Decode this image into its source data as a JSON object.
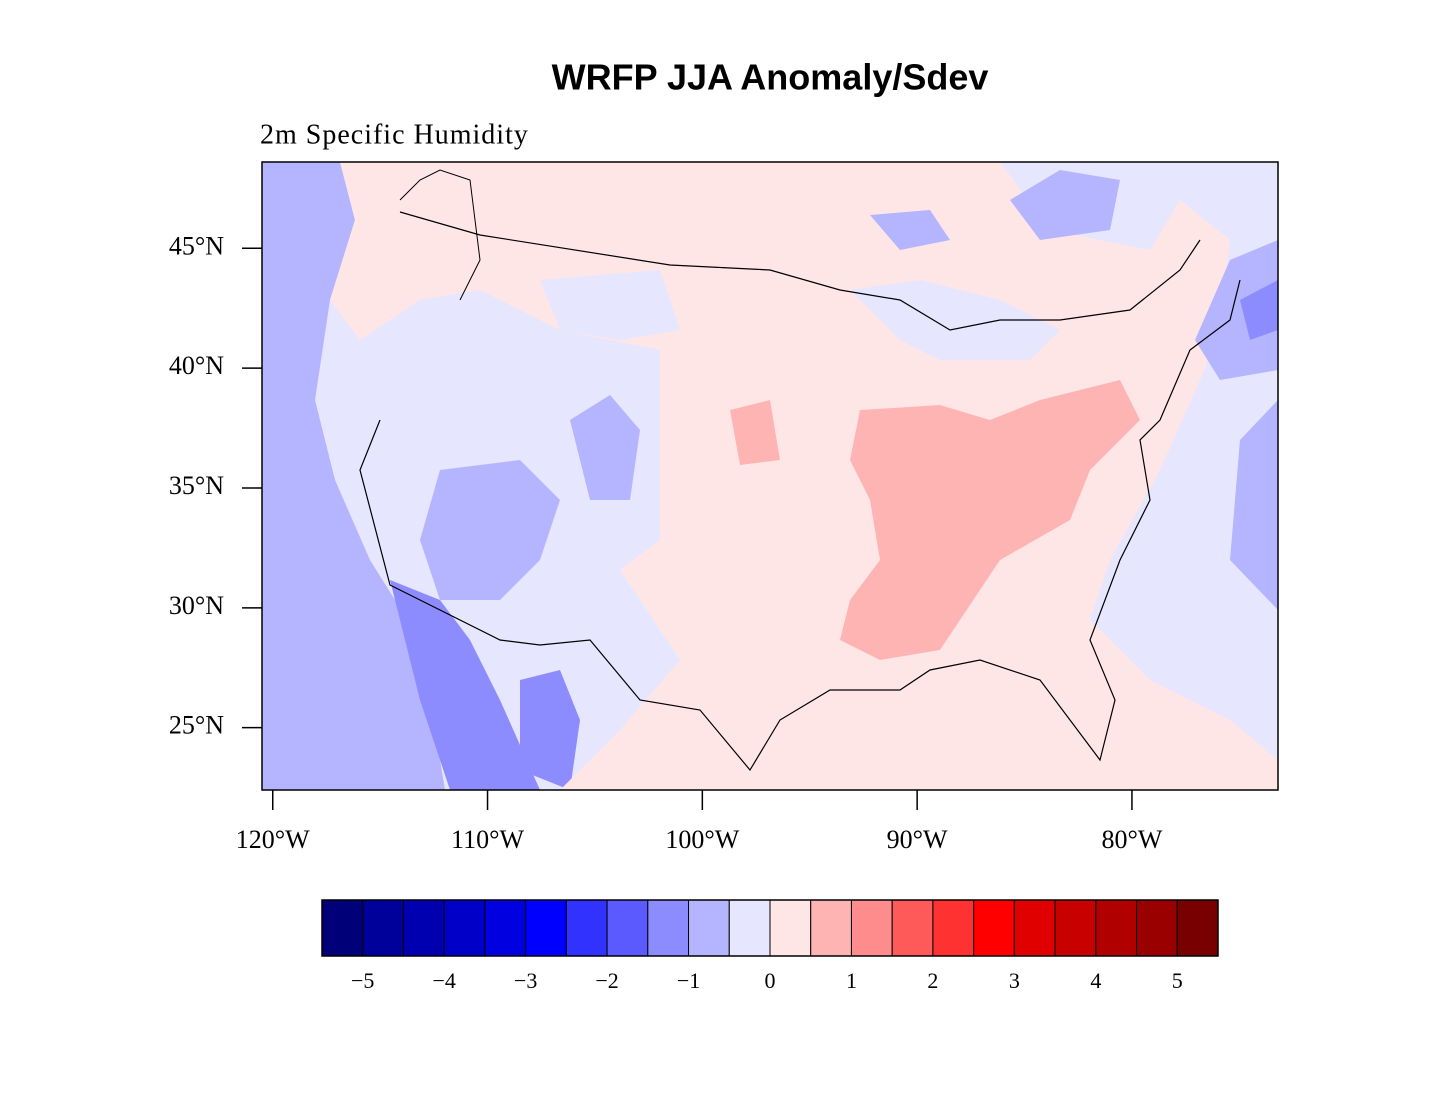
{
  "chart_data": {
    "type": "map",
    "title": "WRFP JJA Anomaly/Sdev",
    "subtitle": "2m Specific Humidity",
    "xlim": [
      -120.5,
      -73.2
    ],
    "ylim": [
      22.4,
      48.6
    ],
    "xticks": [
      {
        "value": -120,
        "label": "120°W"
      },
      {
        "value": -110,
        "label": "110°W"
      },
      {
        "value": -100,
        "label": "100°W"
      },
      {
        "value": -90,
        "label": "90°W"
      },
      {
        "value": -80,
        "label": "80°W"
      }
    ],
    "yticks": [
      {
        "value": 25,
        "label": "25°N"
      },
      {
        "value": 30,
        "label": "30°N"
      },
      {
        "value": 35,
        "label": "35°N"
      },
      {
        "value": 40,
        "label": "40°N"
      },
      {
        "value": 45,
        "label": "45°N"
      }
    ],
    "colorbar": {
      "colors": [
        "#000078",
        "#00009a",
        "#0000b0",
        "#0000c8",
        "#0000e0",
        "#0000ff",
        "#3232ff",
        "#5a5aff",
        "#8c8cff",
        "#b4b4ff",
        "#e6e6ff",
        "#ffe6e6",
        "#ffb4b4",
        "#ff8c8c",
        "#ff5a5a",
        "#ff3232",
        "#ff0000",
        "#e00000",
        "#c80000",
        "#b00000",
        "#9a0000",
        "#780000"
      ],
      "ticks": [
        {
          "value": -5,
          "label": "−5"
        },
        {
          "value": -4,
          "label": "−4"
        },
        {
          "value": -3,
          "label": "−3"
        },
        {
          "value": -2,
          "label": "−2"
        },
        {
          "value": -1,
          "label": "−1"
        },
        0,
        1,
        2,
        3,
        4,
        5
      ]
    }
  }
}
